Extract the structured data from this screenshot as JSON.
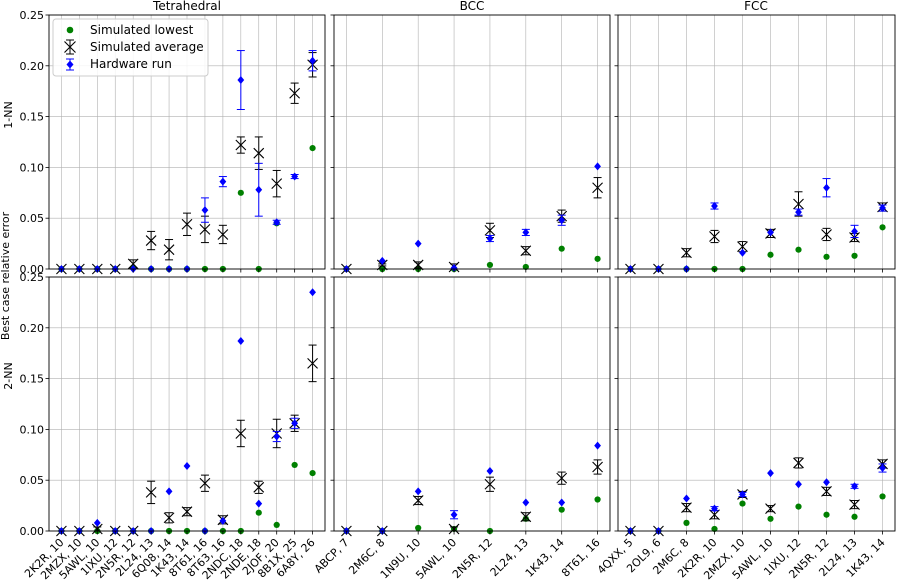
{
  "figure": {
    "ylabel": "Best case relative error",
    "row_labels": [
      "1-NN",
      "2-NN"
    ],
    "col_titles": [
      "Tetrahedral",
      "BCC",
      "FCC"
    ]
  },
  "legend": {
    "placement": "top-left",
    "entries": [
      {
        "label": "Simulated lowest",
        "marker": "circle",
        "color": "#008000"
      },
      {
        "label": "Simulated average",
        "marker": "x-errorbar",
        "color": "#000000"
      },
      {
        "label": "Hardware run",
        "marker": "diamond-errorbar",
        "color": "#0000ff"
      }
    ]
  },
  "colors": {
    "lowest": "#008000",
    "average": "#000000",
    "hardware": "#0000ff",
    "grid": "#b0b0b0"
  },
  "chart_data": {
    "type": "scatter",
    "ylim": [
      0,
      0.25
    ],
    "yticks": [
      0,
      0.05,
      0.1,
      0.15,
      0.2,
      0.25
    ],
    "ytick_labels": [
      "0.00",
      "0.05",
      "0.10",
      "0.15",
      "0.20",
      "0.25"
    ],
    "grid": true,
    "panels": [
      {
        "row": 0,
        "col": 0,
        "categories": [
          "2K2R, 10",
          "2MZX, 10",
          "5AWL, 10",
          "1IXU, 12",
          "2N5R, 12",
          "2L24, 13",
          "6Q08, 14",
          "1K43, 14",
          "8T61, 16",
          "8T63, 16",
          "2NDC, 18",
          "2NDE, 18",
          "2JOF, 20",
          "8B1X, 25",
          "6A8Y, 26"
        ],
        "series": [
          {
            "name": "Simulated lowest",
            "values": [
              0,
              0,
              0,
              0,
              0.001,
              0,
              0,
              0,
              0,
              0,
              0.075,
              0,
              0.045,
              null,
              0.119
            ]
          },
          {
            "name": "Simulated average",
            "values": [
              0,
              0,
              0,
              0,
              0.005,
              0.028,
              0.019,
              0.044,
              0.039,
              0.034,
              0.122,
              0.114,
              0.084,
              0.173,
              0.201
            ],
            "err": [
              0,
              0,
              0,
              0,
              0.004,
              0.009,
              0.01,
              0.011,
              0.013,
              0.009,
              0.008,
              0.016,
              0.013,
              0.01,
              0.012
            ]
          },
          {
            "name": "Hardware run",
            "values": [
              0,
              0,
              0,
              0,
              0,
              0,
              0,
              0,
              0.058,
              0.086,
              0.186,
              0.078,
              0.046,
              0.091,
              0.205
            ],
            "err": [
              0,
              0,
              0,
              0,
              0,
              0,
              0,
              0,
              0.012,
              0.005,
              0.029,
              0.026,
              0.002,
              0.002,
              0.01
            ]
          }
        ]
      },
      {
        "row": 0,
        "col": 1,
        "categories": [
          "ABCP, 7",
          "2M6C, 8",
          "1N9U, 10",
          "5AWL, 10",
          "2N5R, 12",
          "2L24, 13",
          "1K43, 14",
          "8T61, 16"
        ],
        "series": [
          {
            "name": "Simulated lowest",
            "values": [
              0,
              0,
              0,
              0,
              0.004,
              0.002,
              0.02,
              0.01
            ]
          },
          {
            "name": "Simulated average",
            "values": [
              0,
              0.004,
              0.004,
              0.002,
              0.038,
              0.018,
              0.052,
              0.08
            ],
            "err": [
              0,
              0.001,
              0.003,
              0.003,
              0.007,
              0.004,
              0.006,
              0.01
            ]
          },
          {
            "name": "Hardware run",
            "values": [
              0,
              0.008,
              0.025,
              0.001,
              0.03,
              0.036,
              0.048,
              0.101
            ],
            "err": [
              0,
              0,
              0,
              0,
              0.003,
              0.003,
              0.005,
              0
            ]
          }
        ]
      },
      {
        "row": 0,
        "col": 2,
        "categories": [
          "4QXX, 5",
          "2OL9, 6",
          "2M6C, 8",
          "2K2R, 10",
          "2MZX, 10",
          "5AWL, 10",
          "1IXU, 12",
          "2N5R, 12",
          "2L24, 13",
          "1K43, 14"
        ],
        "series": [
          {
            "name": "Simulated lowest",
            "values": [
              0,
              0,
              0,
              0,
              0,
              0.014,
              0.019,
              0.012,
              0.013,
              0.041
            ]
          },
          {
            "name": "Simulated average",
            "values": [
              0,
              0,
              0.016,
              0.032,
              0.022,
              0.035,
              0.064,
              0.034,
              0.031,
              0.061
            ],
            "err": [
              0,
              0,
              0.004,
              0.006,
              0.005,
              0.004,
              0.012,
              0.006,
              0.004,
              0.004
            ]
          },
          {
            "name": "Hardware run",
            "values": [
              0,
              0,
              0,
              0.062,
              0.016,
              0.036,
              0.056,
              0.08,
              0.037,
              0.06
            ],
            "err": [
              0,
              0,
              0,
              0.003,
              0,
              0,
              0.003,
              0.009,
              0.006,
              0.003
            ]
          }
        ]
      },
      {
        "row": 1,
        "col": 0,
        "categories": [
          "2K2R, 10",
          "2MZX, 10",
          "5AWL, 10",
          "1IXU, 12",
          "2N5R, 12",
          "2L24, 13",
          "6Q08, 14",
          "1K43, 14",
          "8T61, 16",
          "8T63, 16",
          "2NDC, 18",
          "2NDE, 18",
          "2JOF, 20",
          "8B1X, 25",
          "6A8Y, 26"
        ],
        "series": [
          {
            "name": "Simulated lowest",
            "values": [
              0,
              0,
              0,
              0,
              0,
              0,
              0,
              0,
              0,
              0,
              0,
              0.018,
              0.006,
              0.065,
              0.057
            ]
          },
          {
            "name": "Simulated average",
            "values": [
              0,
              0,
              0.002,
              0,
              0,
              0.038,
              0.013,
              0.019,
              0.047,
              0.011,
              0.096,
              0.043,
              0.096,
              0.106,
              0.165
            ],
            "err": [
              0,
              0,
              0.002,
              0,
              0,
              0.011,
              0.005,
              0.004,
              0.008,
              0.004,
              0.013,
              0.006,
              0.014,
              0.008,
              0.018
            ]
          },
          {
            "name": "Hardware run",
            "values": [
              0,
              0,
              0.008,
              0,
              0,
              0,
              0.039,
              0.064,
              0,
              0.01,
              0.187,
              0.027,
              0.093,
              0.106,
              0.235
            ],
            "err": [
              0,
              0,
              0,
              0,
              0,
              0,
              0,
              0,
              0,
              0,
              0,
              0,
              0.005,
              0.005,
              0
            ]
          }
        ]
      },
      {
        "row": 1,
        "col": 1,
        "categories": [
          "ABCP, 7",
          "2M6C, 8",
          "1N9U, 10",
          "5AWL, 10",
          "2N5R, 12",
          "2L24, 13",
          "1K43, 14",
          "8T61, 16"
        ],
        "series": [
          {
            "name": "Simulated lowest",
            "values": [
              0,
              0,
              0.003,
              0.002,
              0,
              0.012,
              0.021,
              0.031
            ]
          },
          {
            "name": "Simulated average",
            "values": [
              0,
              0,
              0.03,
              0.002,
              0.046,
              0.014,
              0.052,
              0.063
            ],
            "err": [
              0,
              0,
              0.004,
              0.002,
              0.007,
              0.004,
              0.006,
              0.007
            ]
          },
          {
            "name": "Hardware run",
            "values": [
              0,
              0,
              0.039,
              0.016,
              0.059,
              0.028,
              0.028,
              0.084
            ],
            "err": [
              0,
              0,
              0,
              0.004,
              0,
              0,
              0,
              0
            ]
          }
        ]
      },
      {
        "row": 1,
        "col": 2,
        "categories": [
          "4QXX, 5",
          "2OL9, 6",
          "2M6C, 8",
          "2K2R, 10",
          "2MZX, 10",
          "5AWL, 10",
          "1IXU, 12",
          "2N5R, 12",
          "2L24, 13",
          "1K43, 14"
        ],
        "series": [
          {
            "name": "Simulated lowest",
            "values": [
              0,
              0,
              0.008,
              0.002,
              0.027,
              0.012,
              0.024,
              0.016,
              0.014,
              0.034
            ]
          },
          {
            "name": "Simulated average",
            "values": [
              0,
              0,
              0.023,
              0.016,
              0.036,
              0.022,
              0.067,
              0.039,
              0.026,
              0.066
            ],
            "err": [
              0,
              0,
              0.004,
              0.004,
              0.003,
              0.003,
              0.005,
              0.004,
              0.004,
              0.004
            ]
          },
          {
            "name": "Hardware run",
            "values": [
              0,
              0,
              0.032,
              0.022,
              0.036,
              0.057,
              0.046,
              0.048,
              0.044,
              0.062
            ],
            "err": [
              0,
              0,
              0,
              0.002,
              0.002,
              0,
              0,
              0,
              0.002,
              0.004
            ]
          }
        ]
      }
    ]
  }
}
